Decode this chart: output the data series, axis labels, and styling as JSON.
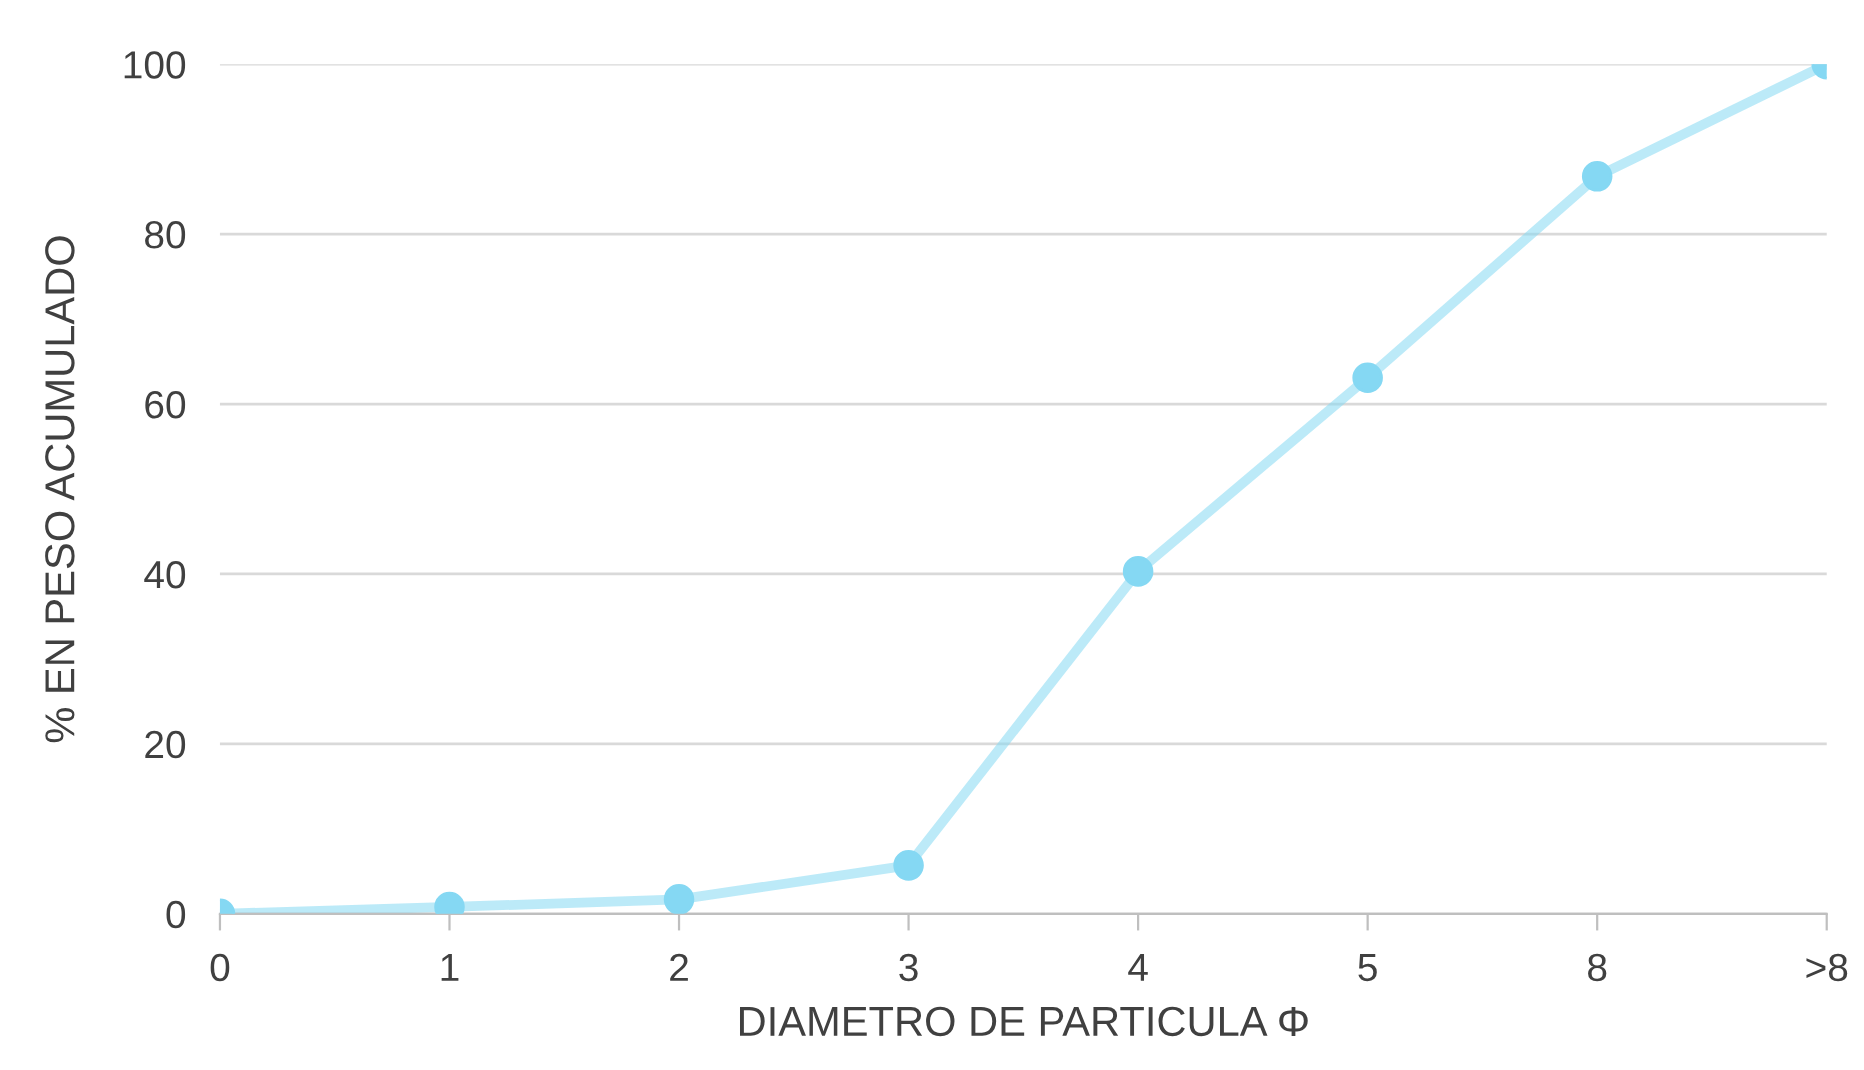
{
  "chart_data": {
    "type": "line",
    "xlabel": "DIAMETRO DE PARTICULA Φ",
    "ylabel": "% EN PESO ACUMULADO",
    "categories": [
      "0",
      "1",
      "2",
      "3",
      "4",
      "5",
      "8",
      ">8"
    ],
    "series": [
      {
        "color": "#85d8f3",
        "values": [
          0,
          0.8,
          1.7,
          5.7,
          40.3,
          63.1,
          86.8,
          100
        ]
      }
    ],
    "ylim": [
      0,
      100
    ],
    "yticks": [
      0,
      20,
      40,
      60,
      80,
      100
    ],
    "grid": "y",
    "marker": "circle",
    "line_style": "solid",
    "legend": false
  }
}
